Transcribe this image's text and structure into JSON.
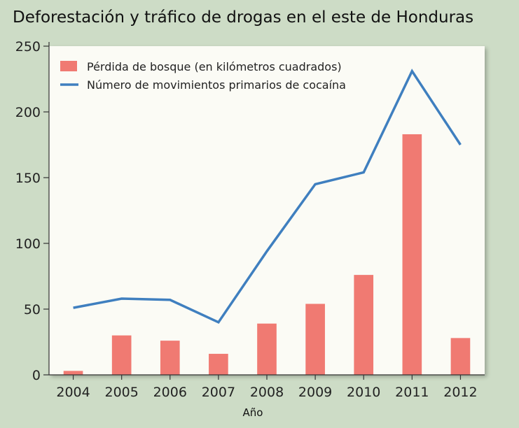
{
  "chart_data": {
    "type": "bar+line",
    "title": "Deforestación y tráfico de drogas en el este de Honduras",
    "xlabel": "Año",
    "ylabel": "",
    "ylim": [
      0,
      250
    ],
    "yticks": [
      0,
      50,
      100,
      150,
      200,
      250
    ],
    "categories": [
      "2004",
      "2005",
      "2006",
      "2007",
      "2008",
      "2009",
      "2010",
      "2011",
      "2012"
    ],
    "series": [
      {
        "name": "Pérdida de bosque (en kilómetros cuadrados)",
        "type": "bar",
        "color": "#f07a72",
        "values": [
          3,
          30,
          26,
          16,
          39,
          54,
          76,
          183,
          28
        ]
      },
      {
        "name": "Número de movimientos primarios de cocaína",
        "type": "line",
        "color": "#3f7fbf",
        "values": [
          51,
          58,
          57,
          40,
          94,
          145,
          154,
          231,
          175
        ]
      }
    ],
    "legend_position": "top-left",
    "grid": false,
    "plot_background": "#fbfbf5"
  }
}
